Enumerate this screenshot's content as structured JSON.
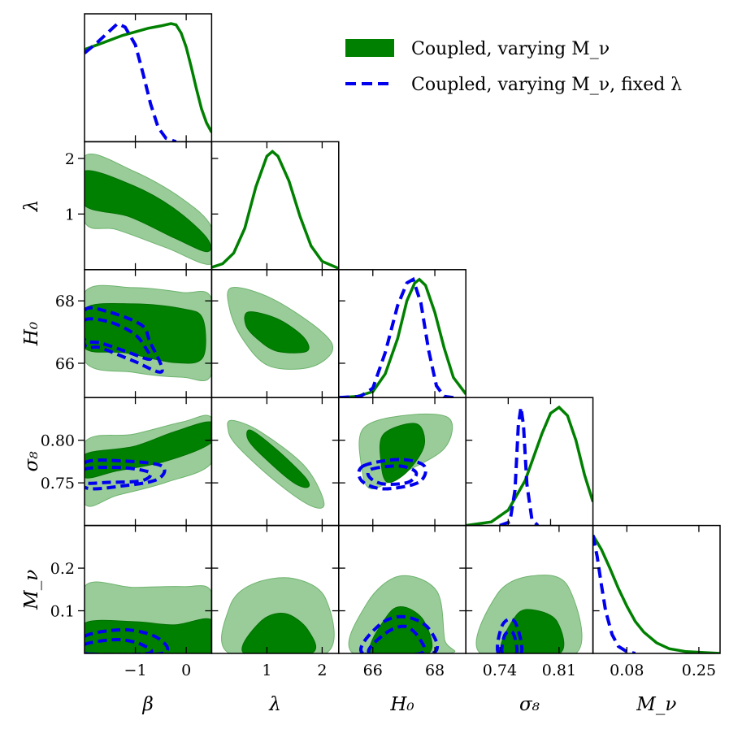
{
  "chart_data": {
    "type": "corner",
    "title": "",
    "parameters": [
      {
        "key": "beta",
        "label": "β",
        "range": [
          -2.0,
          0.5
        ],
        "ticks": [
          {
            "v": -1,
            "label": "−1"
          },
          {
            "v": 0,
            "label": "0"
          }
        ]
      },
      {
        "key": "lambda",
        "label": "λ",
        "range": [
          0.0,
          2.3
        ],
        "ticks": [
          {
            "v": 1,
            "label": "1"
          },
          {
            "v": 2,
            "label": "2"
          }
        ]
      },
      {
        "key": "H0",
        "label": "H₀",
        "range": [
          64.9,
          69.0
        ],
        "ticks": [
          {
            "v": 66,
            "label": "66"
          },
          {
            "v": 68,
            "label": "68"
          }
        ]
      },
      {
        "key": "sigma8",
        "label": "σ₈",
        "range": [
          0.7,
          0.85
        ],
        "ticks": [
          {
            "v": 0.75,
            "label": "0.75"
          },
          {
            "v": 0.8,
            "label": "0.80"
          }
        ]
      },
      {
        "key": "Mnu",
        "label": "M_ν",
        "range": [
          0.0,
          0.3
        ],
        "ticks": [
          {
            "v": 0.1,
            "label": "0.1"
          },
          {
            "v": 0.2,
            "label": "0.2"
          }
        ]
      }
    ],
    "bottom_ticks": [
      [
        {
          "v": -1,
          "label": "−1"
        },
        {
          "v": 0,
          "label": "0"
        }
      ],
      [
        {
          "v": 1,
          "label": "1"
        },
        {
          "v": 2,
          "label": "2"
        }
      ],
      [
        {
          "v": 66,
          "label": "66"
        },
        {
          "v": 68,
          "label": "68"
        }
      ],
      [
        {
          "v": 0.74,
          "label": "0.74"
        },
        {
          "v": 0.81,
          "label": "0.81"
        }
      ],
      [
        {
          "v": 0.08,
          "label": "0.08"
        },
        {
          "v": 0.25,
          "label": "0.25"
        }
      ]
    ],
    "legend": {
      "location": "top-right",
      "entries": [
        {
          "label": "Coupled, varying M_ν",
          "style": "filled",
          "color": "#008000"
        },
        {
          "label": "Coupled, varying M_ν, fixed λ",
          "style": "dashed",
          "color": "#0000ee"
        }
      ]
    },
    "series": [
      {
        "name": "Coupled, varying M_ν",
        "color": "#008000",
        "fill_outer": "#99cc99",
        "fill_inner": "#008000",
        "marginals": {
          "beta": [
            [
              -2.0,
              0.78
            ],
            [
              -1.75,
              0.82
            ],
            [
              -1.5,
              0.86
            ],
            [
              -1.25,
              0.9
            ],
            [
              -1.0,
              0.93
            ],
            [
              -0.75,
              0.96
            ],
            [
              -0.5,
              0.98
            ],
            [
              -0.3,
              1.0
            ],
            [
              -0.2,
              0.99
            ],
            [
              -0.1,
              0.92
            ],
            [
              0.0,
              0.8
            ],
            [
              0.1,
              0.63
            ],
            [
              0.2,
              0.45
            ],
            [
              0.3,
              0.28
            ],
            [
              0.4,
              0.16
            ],
            [
              0.5,
              0.08
            ]
          ],
          "lambda": [
            [
              0.0,
              0.02
            ],
            [
              0.2,
              0.05
            ],
            [
              0.4,
              0.14
            ],
            [
              0.6,
              0.35
            ],
            [
              0.8,
              0.7
            ],
            [
              1.0,
              0.96
            ],
            [
              1.1,
              1.0
            ],
            [
              1.2,
              0.96
            ],
            [
              1.4,
              0.75
            ],
            [
              1.6,
              0.45
            ],
            [
              1.8,
              0.2
            ],
            [
              2.0,
              0.07
            ],
            [
              2.3,
              0.01
            ]
          ],
          "H0": [
            [
              64.9,
              0.0
            ],
            [
              65.5,
              0.01
            ],
            [
              66.0,
              0.05
            ],
            [
              66.4,
              0.2
            ],
            [
              66.8,
              0.5
            ],
            [
              67.1,
              0.82
            ],
            [
              67.35,
              0.97
            ],
            [
              67.5,
              1.0
            ],
            [
              67.7,
              0.95
            ],
            [
              68.0,
              0.72
            ],
            [
              68.3,
              0.42
            ],
            [
              68.6,
              0.17
            ],
            [
              69.0,
              0.03
            ]
          ],
          "sigma8": [
            [
              0.7,
              0.0
            ],
            [
              0.73,
              0.03
            ],
            [
              0.75,
              0.13
            ],
            [
              0.77,
              0.38
            ],
            [
              0.79,
              0.78
            ],
            [
              0.8,
              0.95
            ],
            [
              0.81,
              1.0
            ],
            [
              0.82,
              0.93
            ],
            [
              0.83,
              0.72
            ],
            [
              0.84,
              0.43
            ],
            [
              0.85,
              0.2
            ]
          ],
          "Mnu": [
            [
              0.0,
              1.0
            ],
            [
              0.02,
              0.88
            ],
            [
              0.04,
              0.72
            ],
            [
              0.06,
              0.55
            ],
            [
              0.08,
              0.4
            ],
            [
              0.1,
              0.27
            ],
            [
              0.12,
              0.18
            ],
            [
              0.15,
              0.09
            ],
            [
              0.18,
              0.04
            ],
            [
              0.22,
              0.015
            ],
            [
              0.3,
              0.0
            ]
          ]
        }
      },
      {
        "name": "Coupled, varying M_ν, fixed λ",
        "color": "#0000ee",
        "marginals": {
          "beta": [
            [
              -2.0,
              0.75
            ],
            [
              -1.75,
              0.84
            ],
            [
              -1.5,
              0.94
            ],
            [
              -1.35,
              1.0
            ],
            [
              -1.2,
              0.97
            ],
            [
              -1.0,
              0.82
            ],
            [
              -0.85,
              0.58
            ],
            [
              -0.7,
              0.32
            ],
            [
              -0.55,
              0.12
            ],
            [
              -0.4,
              0.03
            ],
            [
              -0.2,
              0.0
            ]
          ],
          "H0": [
            [
              64.9,
              0.0
            ],
            [
              65.6,
              0.01
            ],
            [
              66.0,
              0.08
            ],
            [
              66.4,
              0.38
            ],
            [
              66.8,
              0.78
            ],
            [
              67.1,
              0.97
            ],
            [
              67.3,
              1.0
            ],
            [
              67.55,
              0.8
            ],
            [
              67.8,
              0.4
            ],
            [
              68.05,
              0.1
            ],
            [
              68.3,
              0.01
            ],
            [
              68.6,
              0.0
            ]
          ],
          "sigma8": [
            [
              0.74,
              0.0
            ],
            [
              0.752,
              0.03
            ],
            [
              0.758,
              0.3
            ],
            [
              0.762,
              0.85
            ],
            [
              0.765,
              1.0
            ],
            [
              0.768,
              0.85
            ],
            [
              0.772,
              0.35
            ],
            [
              0.778,
              0.05
            ],
            [
              0.785,
              0.0
            ]
          ],
          "Mnu": [
            [
              0.0,
              1.0
            ],
            [
              0.01,
              0.82
            ],
            [
              0.02,
              0.58
            ],
            [
              0.03,
              0.36
            ],
            [
              0.045,
              0.16
            ],
            [
              0.06,
              0.06
            ],
            [
              0.08,
              0.015
            ],
            [
              0.1,
              0.0
            ]
          ]
        }
      }
    ]
  }
}
